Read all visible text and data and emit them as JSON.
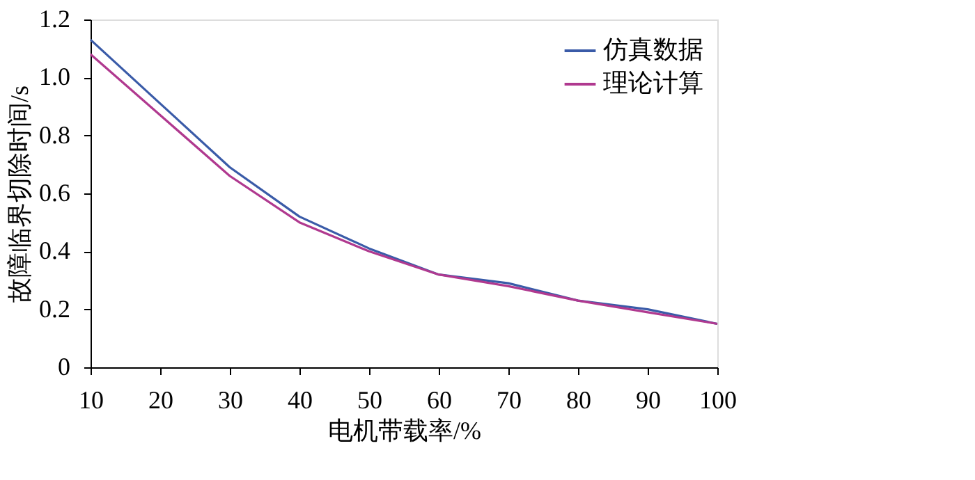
{
  "chart_data": {
    "type": "line",
    "xlabel": "电机带载率/%",
    "ylabel": "故障临界切除时间/s",
    "x": [
      10,
      20,
      30,
      40,
      50,
      60,
      70,
      80,
      90,
      100
    ],
    "series": [
      {
        "name": "仿真数据",
        "color": "#3a5ba8",
        "values": [
          1.13,
          0.91,
          0.69,
          0.52,
          0.41,
          0.32,
          0.29,
          0.23,
          0.2,
          0.15
        ]
      },
      {
        "name": "理论计算",
        "color": "#b0398f",
        "values": [
          1.08,
          0.87,
          0.66,
          0.5,
          0.4,
          0.32,
          0.28,
          0.23,
          0.19,
          0.15
        ]
      }
    ],
    "xlim": [
      10,
      100
    ],
    "xticks": [
      10,
      20,
      30,
      40,
      50,
      60,
      70,
      80,
      90,
      100
    ],
    "ylim": [
      0,
      1.2
    ],
    "yticks": [
      0,
      0.2,
      0.4,
      0.6,
      0.8,
      {
        "value": 1.0,
        "label": "1.0"
      },
      1.2
    ],
    "grid": false,
    "legend": "top right",
    "marker": "none",
    "line_style": "solid"
  }
}
